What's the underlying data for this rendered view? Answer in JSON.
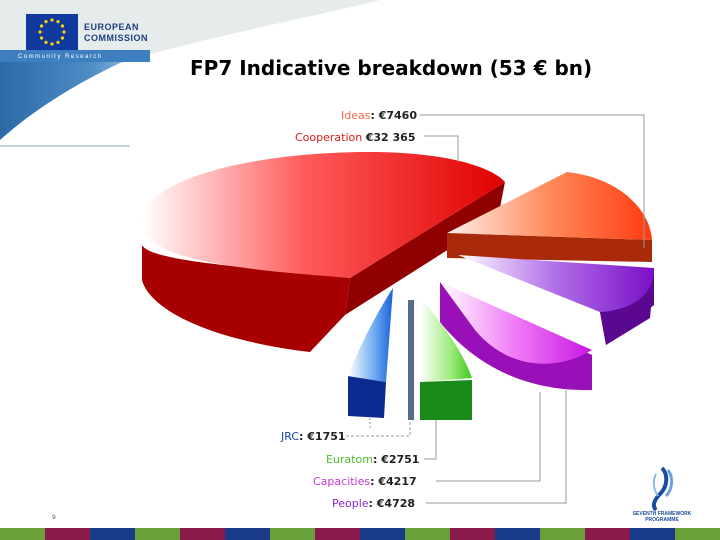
{
  "header": {
    "org_line1": "EUROPEAN",
    "org_line2": "COMMISSION",
    "subtitle": "Community Research"
  },
  "title": "FP7 Indicative breakdown (53 € bn)",
  "slide_number": "9",
  "logo_text": "SEVENTH FRAMEWORK PROGRAMME",
  "chart_data": {
    "type": "pie",
    "title": "FP7 Indicative breakdown (53 € bn)",
    "unit": "€ m",
    "slices": [
      {
        "name": "Cooperation",
        "value": 32365,
        "label_value": "€32 365",
        "color": "#e01818"
      },
      {
        "name": "Ideas",
        "value": 7460,
        "label_value": "€7460",
        "color": "#f26a45"
      },
      {
        "name": "People",
        "value": 4728,
        "label_value": "€4728",
        "color": "#8a28c8"
      },
      {
        "name": "Capacities",
        "value": 4217,
        "label_value": "€4217",
        "color": "#d23ae8"
      },
      {
        "name": "Euratom",
        "value": 2751,
        "label_value": "€2751",
        "color": "#2fae2f"
      },
      {
        "name": "JRC",
        "value": 1751,
        "label_value": "€1751",
        "color": "#2c6fd6"
      }
    ],
    "legend": "callout-labels"
  }
}
